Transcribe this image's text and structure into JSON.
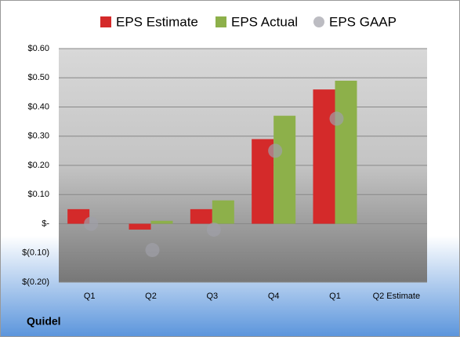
{
  "chart_data": {
    "type": "bar",
    "title": "Quidel",
    "categories": [
      "Q1",
      "Q2",
      "Q3",
      "Q4",
      "Q1",
      "Q2 Estimate"
    ],
    "series": [
      {
        "name": "EPS Estimate",
        "color": "#d42a2a",
        "marker": "bar",
        "values": [
          0.05,
          -0.02,
          0.05,
          0.29,
          0.46,
          null
        ]
      },
      {
        "name": "EPS Actual",
        "color": "#8db04a",
        "marker": "bar",
        "values": [
          null,
          0.01,
          0.08,
          0.37,
          0.49,
          null
        ]
      },
      {
        "name": "EPS GAAP",
        "color": "#a0a0a8",
        "marker": "circle",
        "values": [
          0.0,
          -0.09,
          -0.02,
          0.25,
          0.36,
          null
        ]
      }
    ],
    "ylim": [
      -0.2,
      0.6
    ],
    "yticks": [
      {
        "value": -0.2,
        "label": "$(0.20)"
      },
      {
        "value": -0.1,
        "label": "$(0.10)"
      },
      {
        "value": 0,
        "label": "$-"
      },
      {
        "value": 0.1,
        "label": "$0.10"
      },
      {
        "value": 0.2,
        "label": "$0.20"
      },
      {
        "value": 0.3,
        "label": "$0.30"
      },
      {
        "value": 0.4,
        "label": "$0.40"
      },
      {
        "value": 0.5,
        "label": "$0.50"
      },
      {
        "value": 0.6,
        "label": "$0.60"
      }
    ],
    "grid": true,
    "legend": "top"
  }
}
